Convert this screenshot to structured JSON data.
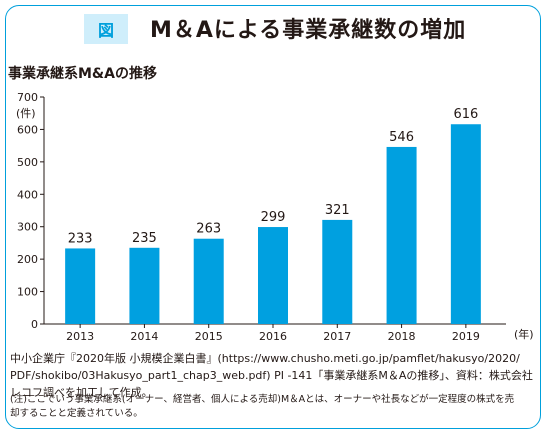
{
  "figure": {
    "badge": "図",
    "title": "M＆Aによる事業承継数の増加"
  },
  "chart_data": {
    "type": "bar",
    "subtitle": "事業承継系M&Aの推移",
    "ylabel": "(件)",
    "xlabel": "(年)",
    "categories": [
      "2013",
      "2014",
      "2015",
      "2016",
      "2017",
      "2018",
      "2019"
    ],
    "values": [
      233,
      235,
      263,
      299,
      321,
      546,
      616
    ],
    "ylim": [
      0,
      700
    ],
    "yticks": [
      0,
      100,
      200,
      300,
      400,
      500,
      600,
      700
    ],
    "bar_color": "#00a0e0",
    "grid": false
  },
  "footer": {
    "source_lines": [
      "中小企業庁『2020年版 小規模企業白書』(https://www.chusho.meti.go.jp/pamflet/hakusyo/2020/",
      "PDF/shokibo/03Hakusyo_part1_chap3_web.pdf) PI -141「事業承継系M＆Aの推移」、資料：株式会社",
      "レコフ調べを加工して作成。"
    ],
    "note_lines": [
      "(注)ここでいう事業承継系(オーナー、経営者、個人による売却)M＆Aとは、オーナーや社長などが一定程度の株式を売",
      "却することと定義されている。"
    ]
  }
}
